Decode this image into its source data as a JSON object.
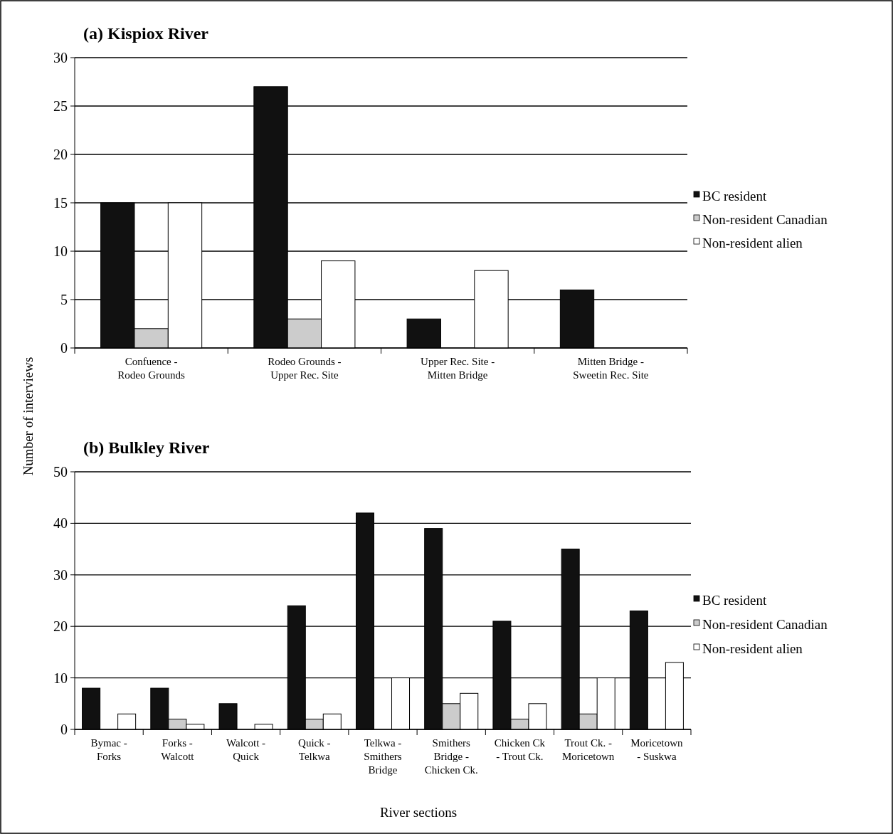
{
  "chart_data": [
    {
      "type": "bar",
      "title": "(a) Kispiox River",
      "ylabel": "Number of interviews",
      "categories": [
        "Confuence -\nRodeo Grounds",
        "Rodeo Grounds -\nUpper Rec. Site",
        "Upper Rec. Site -\nMitten Bridge",
        "Mitten Bridge -\nSweetin Rec. Site"
      ],
      "series": [
        {
          "name": "BC resident",
          "color": "#111111",
          "values": [
            15,
            27,
            3,
            6
          ]
        },
        {
          "name": "Non-resident Canadian",
          "color": "#cccccc",
          "values": [
            2,
            3,
            0,
            0
          ]
        },
        {
          "name": "Non-resident alien",
          "color": "#ffffff",
          "values": [
            15,
            9,
            8,
            0
          ]
        }
      ],
      "ylim": [
        0,
        30
      ],
      "yticks": [
        0,
        5,
        10,
        15,
        20,
        25,
        30
      ],
      "grid": "y",
      "legend": "right"
    },
    {
      "type": "bar",
      "title": "(b) Bulkley River",
      "xlabel": "River sections",
      "categories": [
        "Bymac -\nForks",
        "Forks -\nWalcott",
        "Walcott -\nQuick",
        "Quick -\nTelkwa",
        "Telkwa -\nSmithers\nBridge",
        "Smithers\nBridge -\nChicken Ck.",
        "Chicken Ck\n- Trout Ck.",
        "Trout Ck. -\nMoricetown",
        "Moricetown\n- Suskwa"
      ],
      "series": [
        {
          "name": "BC resident",
          "color": "#111111",
          "values": [
            8,
            8,
            5,
            24,
            42,
            39,
            21,
            35,
            23
          ]
        },
        {
          "name": "Non-resident Canadian",
          "color": "#cccccc",
          "values": [
            0,
            2,
            0,
            2,
            0,
            5,
            2,
            3,
            0
          ]
        },
        {
          "name": "Non-resident alien",
          "color": "#ffffff",
          "values": [
            3,
            1,
            1,
            3,
            10,
            7,
            5,
            10,
            13
          ]
        }
      ],
      "ylim": [
        0,
        50
      ],
      "yticks": [
        0,
        10,
        20,
        30,
        40,
        50
      ],
      "grid": "y",
      "legend": "right"
    }
  ]
}
